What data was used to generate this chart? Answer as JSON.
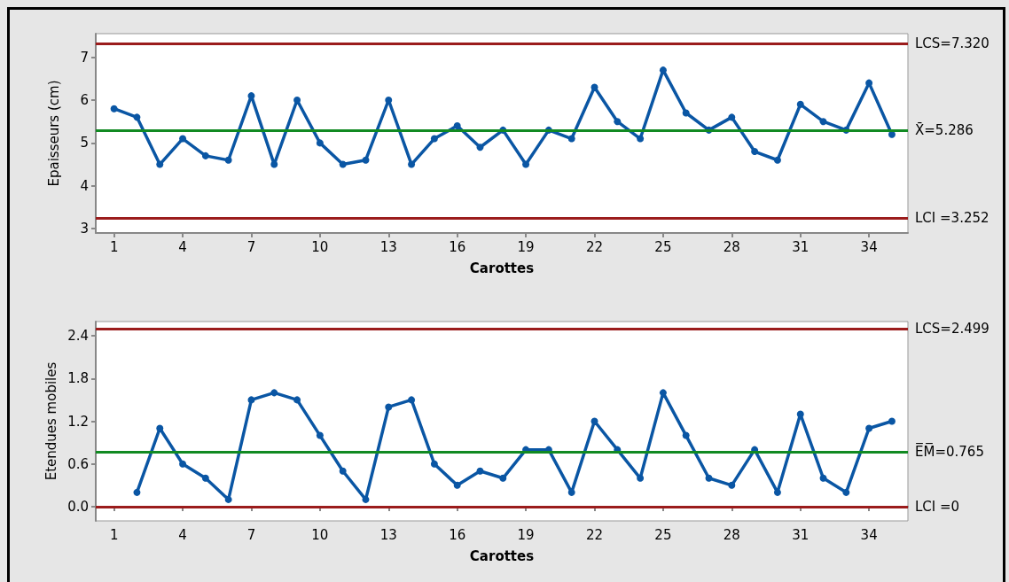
{
  "chart_data": [
    {
      "type": "line",
      "xlabel": "Carottes",
      "ylabel": "Epaisseurs (cm)",
      "marker": "circle",
      "grid": false,
      "x": [
        1,
        2,
        3,
        4,
        5,
        6,
        7,
        8,
        9,
        10,
        11,
        12,
        13,
        14,
        15,
        16,
        17,
        18,
        19,
        20,
        21,
        22,
        23,
        24,
        25,
        26,
        27,
        28,
        29,
        30,
        31,
        32,
        33,
        34,
        35
      ],
      "series": [
        {
          "color": "#0a56a4",
          "values": [
            5.8,
            5.6,
            4.5,
            5.1,
            4.7,
            4.6,
            6.1,
            4.5,
            6.0,
            5.0,
            4.5,
            4.6,
            6.0,
            4.5,
            5.1,
            5.4,
            4.9,
            5.3,
            4.5,
            5.3,
            5.1,
            6.3,
            5.5,
            5.1,
            6.7,
            5.7,
            5.3,
            5.6,
            4.8,
            4.6,
            5.9,
            5.5,
            5.3,
            6.4,
            5.2
          ]
        }
      ],
      "xlim": [
        0.2,
        35.7
      ],
      "xticks": [
        1,
        4,
        7,
        10,
        13,
        16,
        19,
        22,
        25,
        28,
        31,
        34
      ],
      "ylim": [
        2.9,
        7.55
      ],
      "yticks": [
        3,
        4,
        5,
        6,
        7
      ],
      "ref_lines": [
        {
          "axis": "y",
          "value": 7.32,
          "label": "LCS=7.320",
          "color": "#9b1c1c"
        },
        {
          "axis": "y",
          "value": 5.286,
          "label": "X̄=5.286",
          "color": "#118a22"
        },
        {
          "axis": "y",
          "value": 3.252,
          "label": "LCI =3.252",
          "color": "#9b1c1c"
        }
      ]
    },
    {
      "type": "line",
      "xlabel": "Carottes",
      "ylabel": "Etendues mobiles",
      "marker": "circle",
      "grid": false,
      "x": [
        2,
        3,
        4,
        5,
        6,
        7,
        8,
        9,
        10,
        11,
        12,
        13,
        14,
        15,
        16,
        17,
        18,
        19,
        20,
        21,
        22,
        23,
        24,
        25,
        26,
        27,
        28,
        29,
        30,
        31,
        32,
        33,
        34,
        35
      ],
      "series": [
        {
          "color": "#0a56a4",
          "values": [
            0.2,
            1.1,
            0.6,
            0.4,
            0.1,
            1.5,
            1.6,
            1.5,
            1.0,
            0.5,
            0.1,
            1.4,
            1.5,
            0.6,
            0.3,
            0.5,
            0.4,
            0.8,
            0.8,
            0.2,
            1.2,
            0.8,
            0.4,
            1.6,
            1.0,
            0.4,
            0.3,
            0.8,
            0.2,
            1.3,
            0.4,
            0.2,
            1.1,
            1.2
          ]
        }
      ],
      "xlim": [
        0.2,
        35.7
      ],
      "xticks": [
        1,
        4,
        7,
        10,
        13,
        16,
        19,
        22,
        25,
        28,
        31,
        34
      ],
      "ylim": [
        -0.2,
        2.6
      ],
      "yticks": [
        {
          "value": 0,
          "label": "0.0"
        },
        {
          "value": 0.6,
          "label": "0.6"
        },
        {
          "value": 1.2,
          "label": "1.2"
        },
        {
          "value": 1.8,
          "label": "1.8"
        },
        {
          "value": 2.4,
          "label": "2.4"
        }
      ],
      "ref_lines": [
        {
          "axis": "y",
          "value": 2.499,
          "label": "LCS=2.499",
          "color": "#9b1c1c"
        },
        {
          "axis": "y",
          "value": 0.765,
          "label": "E̅M̅=0.765",
          "color": "#118a22"
        },
        {
          "axis": "y",
          "value": 0,
          "label": "LCI =0",
          "color": "#9b1c1c"
        }
      ]
    }
  ]
}
